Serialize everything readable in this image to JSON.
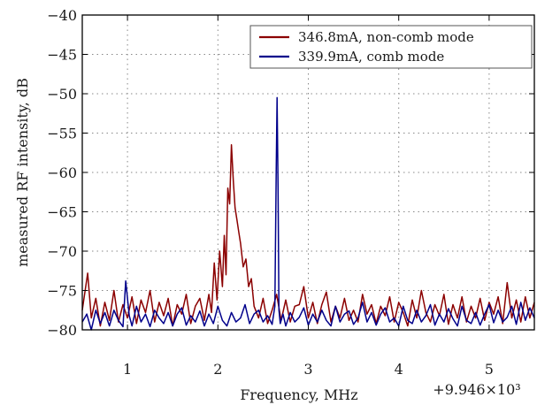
{
  "chart_data": {
    "type": "line",
    "title": "",
    "xlabel": "Frequency, MHz",
    "ylabel": "measured RF intensity, dB",
    "x_offset_label": "+9.946×10³",
    "xlim": [
      0.5,
      5.5
    ],
    "ylim": [
      -80,
      -40
    ],
    "xticks": [
      1,
      2,
      3,
      4,
      5
    ],
    "xtick_labels": [
      "1",
      "2",
      "3",
      "4",
      "5"
    ],
    "yticks": [
      -80,
      -75,
      -70,
      -65,
      -60,
      -55,
      -50,
      -45,
      -40
    ],
    "ytick_labels": [
      "−80",
      "−75",
      "−70",
      "−65",
      "−60",
      "−55",
      "−50",
      "−45",
      "−40"
    ],
    "grid": true,
    "legend_position": "top-right",
    "series": [
      {
        "name": "346.8mA, non-comb mode",
        "color": "#8b0000",
        "x": [
          0.5,
          0.56,
          0.6,
          0.65,
          0.7,
          0.75,
          0.8,
          0.85,
          0.9,
          0.95,
          1.0,
          1.05,
          1.1,
          1.15,
          1.2,
          1.25,
          1.3,
          1.35,
          1.4,
          1.45,
          1.5,
          1.55,
          1.6,
          1.65,
          1.7,
          1.75,
          1.8,
          1.85,
          1.9,
          1.93,
          1.96,
          1.99,
          2.02,
          2.05,
          2.07,
          2.09,
          2.11,
          2.13,
          2.15,
          2.17,
          2.19,
          2.21,
          2.23,
          2.25,
          2.28,
          2.31,
          2.34,
          2.37,
          2.4,
          2.45,
          2.5,
          2.55,
          2.6,
          2.65,
          2.7,
          2.75,
          2.8,
          2.85,
          2.9,
          2.95,
          3.0,
          3.05,
          3.1,
          3.15,
          3.2,
          3.25,
          3.3,
          3.35,
          3.4,
          3.45,
          3.5,
          3.55,
          3.6,
          3.65,
          3.7,
          3.75,
          3.8,
          3.85,
          3.9,
          3.95,
          4.0,
          4.05,
          4.1,
          4.15,
          4.2,
          4.25,
          4.3,
          4.35,
          4.4,
          4.45,
          4.5,
          4.55,
          4.6,
          4.65,
          4.7,
          4.75,
          4.8,
          4.85,
          4.9,
          4.95,
          5.0,
          5.05,
          5.1,
          5.15,
          5.2,
          5.25,
          5.3,
          5.35,
          5.4,
          5.45,
          5.5
        ],
        "y": [
          -77.5,
          -72.8,
          -78.5,
          -76.0,
          -79.5,
          -76.5,
          -78.8,
          -75.0,
          -79.0,
          -76.8,
          -78.5,
          -75.8,
          -79.2,
          -76.2,
          -77.8,
          -75.0,
          -79.0,
          -76.5,
          -78.2,
          -76.0,
          -79.5,
          -76.8,
          -78.0,
          -75.5,
          -79.2,
          -77.0,
          -76.0,
          -78.8,
          -75.5,
          -77.8,
          -71.5,
          -76.2,
          -70.0,
          -74.5,
          -68.0,
          -73.0,
          -62.0,
          -64.0,
          -56.5,
          -61.0,
          -64.5,
          -66.0,
          -67.5,
          -69.0,
          -72.0,
          -71.0,
          -74.5,
          -73.5,
          -77.0,
          -78.5,
          -76.0,
          -79.2,
          -77.5,
          -75.5,
          -78.8,
          -76.2,
          -79.0,
          -77.0,
          -76.8,
          -74.5,
          -78.5,
          -76.5,
          -79.2,
          -76.8,
          -75.2,
          -79.0,
          -77.0,
          -78.5,
          -76.0,
          -78.8,
          -77.5,
          -79.0,
          -75.5,
          -78.0,
          -76.8,
          -79.2,
          -77.0,
          -78.2,
          -75.8,
          -79.0,
          -76.5,
          -77.8,
          -79.5,
          -76.2,
          -78.5,
          -75.0,
          -77.8,
          -79.0,
          -76.8,
          -78.2,
          -75.5,
          -79.3,
          -76.8,
          -78.5,
          -75.8,
          -79.0,
          -77.0,
          -78.5,
          -76.0,
          -78.8,
          -76.5,
          -78.0,
          -75.8,
          -79.2,
          -74.0,
          -78.5,
          -76.2,
          -79.0,
          -75.8,
          -78.5,
          -76.5
        ]
      },
      {
        "name": "339.9mA, comb mode",
        "color": "#00008b",
        "x": [
          0.5,
          0.55,
          0.6,
          0.65,
          0.7,
          0.75,
          0.8,
          0.85,
          0.9,
          0.95,
          0.98,
          1.02,
          1.05,
          1.1,
          1.15,
          1.2,
          1.25,
          1.3,
          1.35,
          1.4,
          1.45,
          1.5,
          1.55,
          1.6,
          1.65,
          1.7,
          1.75,
          1.8,
          1.85,
          1.9,
          1.95,
          2.0,
          2.05,
          2.1,
          2.15,
          2.2,
          2.25,
          2.3,
          2.35,
          2.4,
          2.45,
          2.5,
          2.55,
          2.6,
          2.63,
          2.645,
          2.655,
          2.665,
          2.675,
          2.69,
          2.72,
          2.75,
          2.8,
          2.85,
          2.9,
          2.95,
          3.0,
          3.05,
          3.1,
          3.15,
          3.2,
          3.25,
          3.3,
          3.35,
          3.4,
          3.45,
          3.5,
          3.55,
          3.6,
          3.65,
          3.7,
          3.75,
          3.8,
          3.85,
          3.9,
          3.95,
          4.0,
          4.05,
          4.1,
          4.15,
          4.2,
          4.25,
          4.3,
          4.35,
          4.4,
          4.45,
          4.5,
          4.55,
          4.6,
          4.65,
          4.7,
          4.75,
          4.8,
          4.85,
          4.9,
          4.95,
          5.0,
          5.05,
          5.1,
          5.15,
          5.2,
          5.25,
          5.3,
          5.35,
          5.4,
          5.45,
          5.5
        ],
        "y": [
          -79.0,
          -78.0,
          -80.0,
          -77.5,
          -79.2,
          -77.8,
          -79.5,
          -77.5,
          -78.8,
          -79.6,
          -73.8,
          -78.2,
          -79.5,
          -77.0,
          -79.0,
          -78.0,
          -79.6,
          -77.5,
          -78.5,
          -79.2,
          -77.8,
          -79.5,
          -78.0,
          -77.2,
          -79.4,
          -78.2,
          -79.0,
          -77.6,
          -79.5,
          -78.0,
          -79.2,
          -77.0,
          -78.8,
          -79.5,
          -77.8,
          -79.0,
          -78.5,
          -76.8,
          -79.2,
          -78.0,
          -77.5,
          -79.0,
          -78.2,
          -79.3,
          -77.0,
          -60.0,
          -50.5,
          -62.0,
          -77.5,
          -79.2,
          -78.0,
          -79.5,
          -77.8,
          -79.0,
          -78.4,
          -77.2,
          -79.4,
          -78.0,
          -79.0,
          -77.5,
          -78.8,
          -79.5,
          -77.0,
          -79.0,
          -78.0,
          -77.6,
          -79.3,
          -78.5,
          -76.5,
          -79.0,
          -77.8,
          -79.4,
          -78.0,
          -77.2,
          -79.0,
          -78.5,
          -79.5,
          -77.0,
          -78.8,
          -79.2,
          -77.5,
          -79.0,
          -78.2,
          -76.8,
          -79.4,
          -78.0,
          -79.0,
          -77.3,
          -78.6,
          -79.5,
          -77.0,
          -78.8,
          -79.2,
          -77.8,
          -79.4,
          -78.0,
          -76.8,
          -79.1,
          -77.5,
          -79.0,
          -78.4,
          -77.0,
          -79.3,
          -76.5,
          -78.8,
          -77.2,
          -78.5
        ]
      }
    ]
  }
}
